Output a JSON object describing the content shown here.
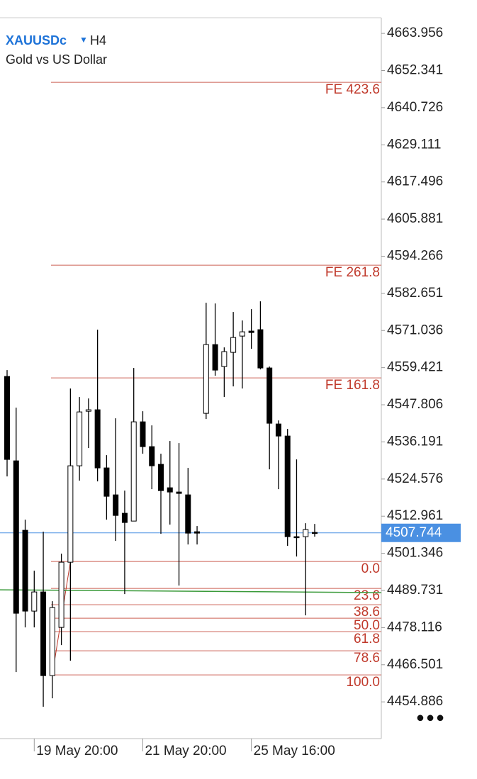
{
  "header": {
    "symbol": "XAUUSDc",
    "timeframe": "H4",
    "description": "Gold vs US Dollar"
  },
  "chart_data": {
    "type": "candlestick",
    "categories": [
      null,
      null,
      null,
      "19 May 20:00",
      null,
      null,
      null,
      null,
      null,
      null,
      null,
      null,
      null,
      null,
      null,
      "21 May 20:00",
      null,
      null,
      null,
      null,
      null,
      null,
      null,
      null,
      null,
      null,
      null,
      "25 May 16:00",
      null,
      null,
      null,
      null,
      null,
      null,
      null
    ],
    "open": [
      4556.66,
      4530.27,
      4508.55,
      4483.28,
      4489.26,
      4463.1,
      4478.18,
      4498.57,
      4528.72,
      4545.79,
      4546.24,
      4528.06,
      4519.63,
      4513.87,
      4511.43,
      4542.47,
      4534.71,
      4529.17,
      4521.85,
      4520.52,
      4519.63,
      4508.1,
      4545.13,
      4566.63,
      4559.76,
      4564.2,
      4569.29,
      4570.85,
      4571.29,
      4559.32,
      4541.8,
      4538.03,
      4506.55,
      4506.55,
      4507.88
    ],
    "high": [
      4558.65,
      4546.9,
      4511.87,
      4495.91,
      4508.1,
      4486.38,
      4501.23,
      4552.89,
      4550.23,
      4549.78,
      4571.29,
      4532.05,
      4543.58,
      4520.96,
      4559.32,
      4545.79,
      4541.36,
      4532.49,
      4536.48,
      4535.82,
      4528.06,
      4509.88,
      4579.71,
      4579.49,
      4565.75,
      4576.83,
      4574.17,
      4577.72,
      4580.16,
      4559.76,
      4542.91,
      4540.25,
      4530.72,
      4510.77,
      4510.54
    ],
    "low": [
      4525.4,
      4464.21,
      4478.18,
      4478.18,
      4453.35,
      4456.01,
      4472.63,
      4467.76,
      4524.07,
      4534.27,
      4523.85,
      4511.87,
      4505.22,
      4488.6,
      4511.43,
      4532.49,
      4521.41,
      4507.44,
      4510.32,
      4491.26,
      4504.11,
      4504.11,
      4543.36,
      4556.88,
      4550.23,
      4553.55,
      4552.89,
      4565.3,
      4558.87,
      4527.61,
      4521.41,
      4503.67,
      4500.35,
      4481.94,
      4506.55
    ],
    "close": [
      4530.72,
      4482.61,
      4483.28,
      4489.26,
      4463.1,
      4484.38,
      4498.57,
      4528.72,
      4545.57,
      4546.24,
      4528.06,
      4519.19,
      4513.2,
      4510.99,
      4542.47,
      4534.71,
      4528.72,
      4520.96,
      4520.52,
      4520.08,
      4507.66,
      4507.66,
      4566.63,
      4558.65,
      4564.42,
      4568.85,
      4570.62,
      4570.4,
      4559.32,
      4542.03,
      4538.03,
      4506.55,
      4506.33,
      4508.77,
      4507.66
    ],
    "up_color": "#ffffff",
    "down_color": "#000000",
    "ylim": [
      4443.4,
      4674.4
    ],
    "yticks": [
      4663.956,
      4652.341,
      4640.726,
      4629.111,
      4617.496,
      4605.881,
      4594.266,
      4582.651,
      4571.036,
      4559.421,
      4547.806,
      4536.191,
      4524.576,
      4512.961,
      4501.346,
      4489.731,
      4478.116,
      4466.501,
      4454.886
    ],
    "current_price": 4507.744,
    "current_price_color": "#4a90e2",
    "levels_color": "#c0392b",
    "levels": [
      {
        "label": "FE 423.6",
        "value": 4648.66
      },
      {
        "label": "FE 261.8",
        "value": 4591.47
      },
      {
        "label": "FE 161.8",
        "value": 4556.21
      },
      {
        "label": "0.0",
        "value": 4498.79
      },
      {
        "label": "23.6",
        "value": 4490.37
      },
      {
        "label": "38.6",
        "value": 4485.27
      },
      {
        "label": "50.0",
        "value": 4481.06
      },
      {
        "label": "61.8",
        "value": 4476.85
      },
      {
        "label": "78.6",
        "value": 4470.86
      },
      {
        "label": "100.0",
        "value": 4463.32
      }
    ],
    "indicator_line": {
      "color": "#3a9a3a",
      "values": [
        4489.93,
        4489.05
      ]
    }
  }
}
